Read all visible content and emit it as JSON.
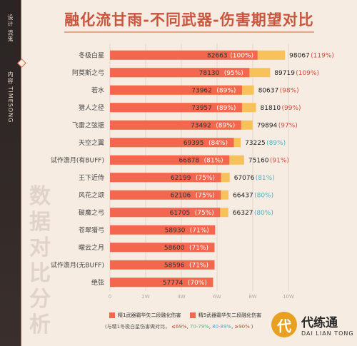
{
  "sidebar": {
    "text1": "设计 流鬼",
    "text2": "内容 TIMESONG"
  },
  "watermark": "数据对比分析",
  "logo": {
    "mark": "代",
    "cn": "代练通",
    "en": "DAI LIAN TONG"
  },
  "colors": {
    "bar_a": "#f2674d",
    "bar_b": "#f7c25a",
    "pct_low": "#d44a3e",
    "pct_mid": "#4dbf86",
    "pct_high": "#47b2c9"
  },
  "chart_data": {
    "type": "bar",
    "orientation": "horizontal",
    "title": "融化流甘雨-不同武器-伤害期望对比",
    "categories": [
      "冬极白星",
      "阿莫斯之弓",
      "若水",
      "猎人之径",
      "飞雷之弦振",
      "天空之翼",
      "试作澹月(有BUFF)",
      "王下近侍",
      "风花之颂",
      "破魔之弓",
      "苍翠猎弓",
      "曚云之月",
      "试作澹月(无BUFF)",
      "绝弦"
    ],
    "series": [
      {
        "name": "精1武器霜华矢二段融化伤害",
        "values": [
          82663,
          78130,
          73962,
          73957,
          73492,
          69395,
          66878,
          62199,
          62106,
          61705,
          58930,
          58600,
          58596,
          57774
        ],
        "labels": [
          "82663",
          "78130",
          "73962",
          "73957",
          "73492",
          "69395",
          "66878",
          "62199",
          "62106",
          "61705",
          "58930",
          "58600",
          "58596",
          "57774"
        ],
        "pct": [
          "(100%)",
          "(95%)",
          "(89%)",
          "(89%)",
          "(89%)",
          "(84%)",
          "(81%)",
          "(75%)",
          "(75%)",
          "(75%)",
          "(71%)",
          "(71%)",
          "(71%)",
          "(70%)"
        ]
      },
      {
        "name": "精5武器霜华矢二段融化伤害",
        "values": [
          98067,
          89719,
          80637,
          81810,
          79894,
          73225,
          75160,
          67076,
          66437,
          66327,
          null,
          null,
          null,
          null
        ],
        "labels": [
          "98067",
          "89719",
          "80637",
          "81810",
          "79894",
          "73225",
          "75160",
          "67076",
          "66437",
          "66327",
          "",
          "",
          "",
          ""
        ],
        "pct": [
          "(119%)",
          "(109%)",
          "(98%)",
          "(99%)",
          "(97%)",
          "(89%)",
          "(91%)",
          "(81%)",
          "(80%)",
          "(80%)",
          "",
          "",
          "",
          ""
        ]
      }
    ],
    "xlim": [
      0,
      100000
    ],
    "x_ticks": [
      "0",
      "2W",
      "4W",
      "6W",
      "8W",
      "10W"
    ],
    "x_tick_values": [
      0,
      20000,
      40000,
      60000,
      80000,
      100000
    ],
    "grid": true,
    "legend": "bottom",
    "note": {
      "prefix": "(与精1冬极白星伤害做对比，",
      "b1": "≤69%",
      "b2": "70-79%",
      "b3": "80-89%",
      "b4": "≥90%",
      "suffix": ")"
    }
  }
}
